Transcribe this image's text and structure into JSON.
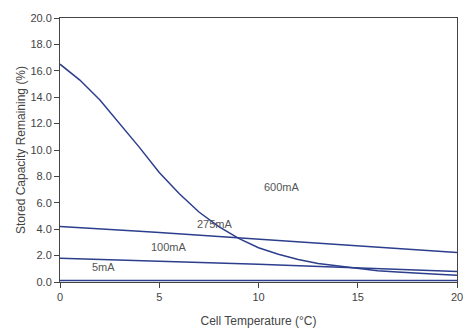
{
  "chart_data": {
    "type": "line",
    "xlabel": "Cell Temperature (°C)",
    "ylabel": "Stored Capacity Remaining (%)",
    "x": [
      0,
      1,
      2,
      3,
      4,
      5,
      6,
      7,
      8,
      9,
      10,
      11,
      12,
      13,
      14,
      15,
      16,
      17,
      18,
      19,
      20
    ],
    "series": [
      {
        "color": "#2c3e8c",
        "values": [
          16.5,
          15.3,
          13.8,
          12.0,
          10.2,
          8.3,
          6.7,
          5.3,
          4.2,
          3.3,
          2.6,
          2.1,
          1.7,
          1.4,
          1.2,
          1.0,
          0.85,
          0.75,
          0.65,
          0.58,
          0.52
        ]
      },
      {
        "color": "#2c3e8c",
        "values": [
          4.2,
          4.12,
          4.05,
          3.95,
          3.85,
          3.75,
          3.65,
          3.55,
          3.44,
          3.34,
          3.23,
          3.12,
          3.02,
          2.92,
          2.82,
          2.72,
          2.62,
          2.52,
          2.42,
          2.33,
          2.23
        ]
      },
      {
        "color": "#2c3e8c",
        "values": [
          1.8,
          1.76,
          1.72,
          1.68,
          1.64,
          1.6,
          1.55,
          1.5,
          1.45,
          1.4,
          1.35,
          1.29,
          1.24,
          1.18,
          1.13,
          1.07,
          1.02,
          0.97,
          0.91,
          0.86,
          0.8
        ]
      },
      {
        "color": "#2c3e8c",
        "values": [
          0.12,
          0.12,
          0.12,
          0.12,
          0.12,
          0.12,
          0.12,
          0.12,
          0.12,
          0.12,
          0.12,
          0.12,
          0.12,
          0.12,
          0.12,
          0.12,
          0.12,
          0.12,
          0.12,
          0.12,
          0.12
        ]
      }
    ],
    "annotations": [
      {
        "text": "600mA",
        "x": 10.2,
        "y": 6.6
      },
      {
        "text": "275mA",
        "x": 6.8,
        "y": 3.8
      },
      {
        "text": "100mA",
        "x": 4.5,
        "y": 2.05
      },
      {
        "text": "5mA",
        "x": 1.5,
        "y": 0.5
      }
    ],
    "xlim": [
      0,
      20
    ],
    "ylim": [
      0,
      20
    ],
    "xticks": [
      0,
      5,
      10,
      15,
      20
    ],
    "yticks": [
      {
        "value": 0.0,
        "label": "0.0"
      },
      {
        "value": 2.0,
        "label": "2.0"
      },
      {
        "value": 4.0,
        "label": "4.0"
      },
      {
        "value": 6.0,
        "label": "6.0"
      },
      {
        "value": 8.0,
        "label": "8.0"
      },
      {
        "value": 10.0,
        "label": "10.0"
      },
      {
        "value": 12.0,
        "label": "12.0"
      },
      {
        "value": 14.0,
        "label": "14.0"
      },
      {
        "value": 16.0,
        "label": "16.0"
      },
      {
        "value": 18.0,
        "label": "18.0"
      },
      {
        "value": 20.0,
        "label": "20.0"
      }
    ],
    "grid": false
  }
}
